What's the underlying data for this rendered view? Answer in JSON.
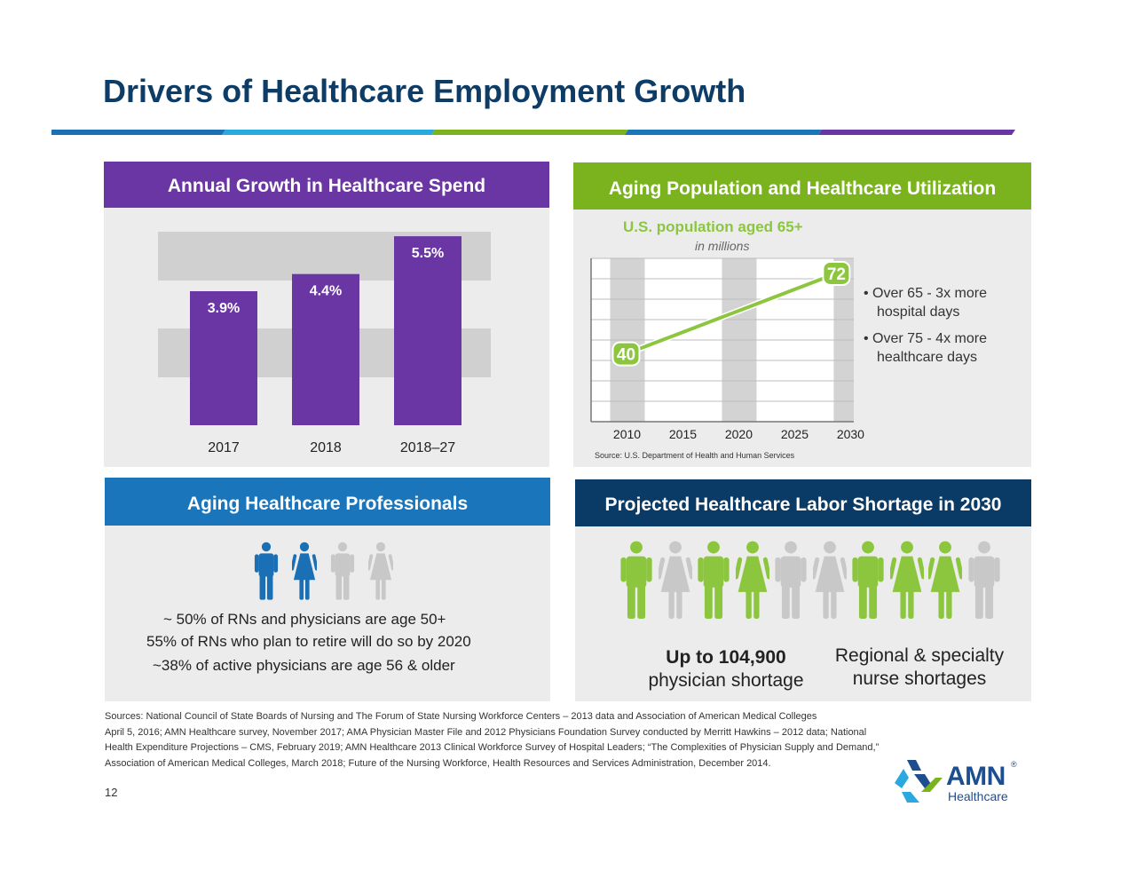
{
  "slide": {
    "title": "Drivers of Healthcare Employment Growth",
    "page_number": "12"
  },
  "colors": {
    "navy": "#0d3c66",
    "purple": "#6a36a4",
    "green": "#7ab31e",
    "blue": "#1a75bb",
    "dark_navy": "#0a3a66",
    "light_green": "#8cc63f",
    "grey_figure": "#c8c8c8"
  },
  "panels": {
    "spend": {
      "title": "Annual Growth in Healthcare Spend"
    },
    "aging_population": {
      "title": "Aging Population and Healthcare Utilization",
      "bullets": [
        {
          "line1": "Over 65 - 3x more",
          "line2": "hospital days"
        },
        {
          "line1": "Over 75 - 4x more",
          "line2": "healthcare days"
        }
      ]
    },
    "professionals": {
      "title": "Aging Healthcare Professionals",
      "lines": [
        "~ 50% of RNs and physicians are age 50+",
        "55% of RNs who plan to retire will do so by 2020",
        "~38% of active physicians are age 56 & older"
      ],
      "figures": [
        {
          "icon": "man-icon",
          "color": "#1a6fb5"
        },
        {
          "icon": "woman-icon",
          "color": "#1a6fb5"
        },
        {
          "icon": "man-icon",
          "color": "#c8c8c8"
        },
        {
          "icon": "woman-icon",
          "color": "#c8c8c8"
        }
      ]
    },
    "shortage": {
      "title": "Projected Healthcare Labor Shortage in 2030",
      "left_value": "Up to 104,900",
      "left_label": "physician shortage",
      "right_value": "Regional & specialty",
      "right_label": "nurse shortages",
      "figures": [
        {
          "icon": "man-icon",
          "color": "#8cc63f"
        },
        {
          "icon": "woman-icon",
          "color": "#c8c8c8"
        },
        {
          "icon": "man-icon",
          "color": "#8cc63f"
        },
        {
          "icon": "woman-icon",
          "color": "#8cc63f"
        },
        {
          "icon": "man-icon",
          "color": "#c8c8c8"
        },
        {
          "icon": "woman-icon",
          "color": "#c8c8c8"
        },
        {
          "icon": "man-icon",
          "color": "#8cc63f"
        },
        {
          "icon": "woman-icon",
          "color": "#8cc63f"
        },
        {
          "icon": "woman-icon",
          "color": "#8cc63f"
        },
        {
          "icon": "man-icon",
          "color": "#c8c8c8"
        }
      ]
    }
  },
  "chart_data": [
    {
      "type": "bar",
      "title": "Annual Growth in Healthcare Spend",
      "categories": [
        "2017",
        "2018",
        "2018–27"
      ],
      "values": [
        3.9,
        4.4,
        5.5
      ],
      "value_labels": [
        "3.9%",
        "4.4%",
        "5.5%"
      ],
      "ylim": [
        0,
        6.2
      ],
      "color": "#6a36a4"
    },
    {
      "type": "line",
      "title": "U.S. population aged 65+",
      "subtitle": "in millions",
      "x": [
        2010,
        2030
      ],
      "values": [
        40,
        72
      ],
      "value_labels": [
        "40",
        "72"
      ],
      "x_ticks": [
        "2010",
        "2015",
        "2020",
        "2025",
        "2030"
      ],
      "xlim": [
        2007.5,
        2031
      ],
      "ylim": [
        13,
        78
      ],
      "grid": true,
      "source": "Source: U.S. Department of Health and Human Services",
      "color": "#8cc63f"
    }
  ],
  "sources": [
    "Sources: National Council of State Boards of Nursing and The Forum of State Nursing Workforce Centers – 2013 data and Association of American Medical Colleges",
    "April 5, 2016; AMN Healthcare survey, November 2017; AMA Physician Master File and 2012 Physicians Foundation Survey conducted by Merritt Hawkins – 2012 data; National",
    "Health Expenditure Projections – CMS, February 2019; AMN Healthcare 2013 Clinical Workforce Survey of Hospital Leaders; “The Complexities of Physician Supply and Demand,”",
    "Association of American Medical Colleges, March 2018; Future of the Nursing Workforce, Health Resources and Services Administration, December 2014."
  ],
  "logo": {
    "name": "AMN",
    "sub": "Healthcare",
    "reg": "®"
  }
}
